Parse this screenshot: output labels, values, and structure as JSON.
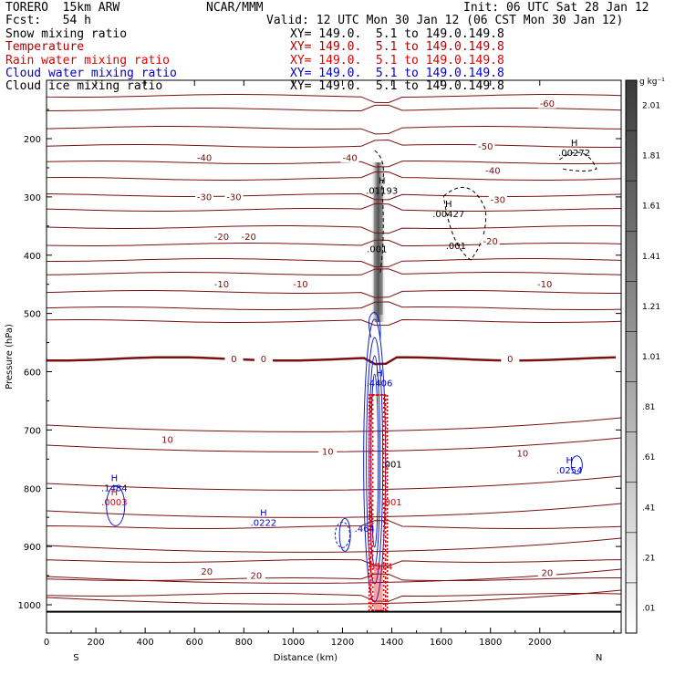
{
  "header": {
    "model": "TORERO  15km ARW",
    "center": "NCAR/MMM",
    "init": "Init: 06 UTC Sat 28 Jan 12",
    "fcst": "Fcst:   54 h",
    "valid": "Valid: 12 UTC Mon 30 Jan 12 (06 CST Mon 30 Jan 12)"
  },
  "fields": [
    {
      "name": "Snow mixing ratio",
      "xy": "XY= 149.0.  5.1 to 149.0.149.8",
      "color": "#000000"
    },
    {
      "name": "Temperature",
      "xy": "XY= 149.0.  5.1 to 149.0.149.8",
      "color": "#b00000"
    },
    {
      "name": "Rain water mixing ratio",
      "xy": "XY= 149.0.  5.1 to 149.0.149.8",
      "color": "#e00000"
    },
    {
      "name": "Cloud water mixing ratio",
      "xy": "XY= 149.0.  5.1 to 149.0.149.8",
      "color": "#0000cc"
    },
    {
      "name": "Cloud ice mixing ratio",
      "xy": "XY= 149.0.  5.1 to 149.0.149.8",
      "color": "#000000"
    }
  ],
  "chart_data": {
    "type": "heatmap",
    "xlabel": "Distance (km)",
    "ylabel": "Pressure (hPa)",
    "xlim": [
      0,
      2330
    ],
    "ylim": [
      1050,
      100
    ],
    "x_ticks": [
      0,
      200,
      400,
      600,
      800,
      1000,
      1200,
      1400,
      1600,
      1800,
      2000
    ],
    "y_ticks": [
      200,
      300,
      400,
      500,
      600,
      700,
      800,
      900,
      1000
    ],
    "x_end_labels": {
      "left": "S",
      "right": "N"
    },
    "colorbar": {
      "unit": "g kg⁻¹",
      "labels": [
        ".01",
        ".21",
        ".41",
        ".61",
        ".81",
        "1.01",
        "1.21",
        "1.41",
        "1.61",
        "1.81",
        "2.01"
      ]
    },
    "temperature_labels": [
      {
        "text": "-60",
        "x": 2030,
        "p": 140
      },
      {
        "text": "-50",
        "x": 1780,
        "p": 213
      },
      {
        "text": "-40",
        "x": 640,
        "p": 233
      },
      {
        "text": "-40",
        "x": 1230,
        "p": 233
      },
      {
        "text": "-40",
        "x": 1810,
        "p": 255
      },
      {
        "text": "-30",
        "x": 640,
        "p": 300
      },
      {
        "text": "-30",
        "x": 760,
        "p": 300
      },
      {
        "text": "-30",
        "x": 1830,
        "p": 305
      },
      {
        "text": "-20",
        "x": 710,
        "p": 368
      },
      {
        "text": "-20",
        "x": 820,
        "p": 368
      },
      {
        "text": "-20",
        "x": 1800,
        "p": 376
      },
      {
        "text": "-10",
        "x": 710,
        "p": 450
      },
      {
        "text": "-10",
        "x": 1030,
        "p": 450
      },
      {
        "text": "-10",
        "x": 2020,
        "p": 450
      },
      {
        "text": "0",
        "x": 760,
        "p": 578
      },
      {
        "text": "0",
        "x": 880,
        "p": 578
      },
      {
        "text": "0",
        "x": 1880,
        "p": 578
      },
      {
        "text": "10",
        "x": 490,
        "p": 717
      },
      {
        "text": "10",
        "x": 1140,
        "p": 737
      },
      {
        "text": "10",
        "x": 1930,
        "p": 740
      },
      {
        "text": "20",
        "x": 650,
        "p": 943
      },
      {
        "text": "20",
        "x": 850,
        "p": 950
      },
      {
        "text": "20",
        "x": 2030,
        "p": 945
      }
    ],
    "extrema": [
      {
        "mark": "H",
        "value": ".01193",
        "x": 1360,
        "p": 290,
        "color": "#000000"
      },
      {
        "mark": "H",
        "value": ".00427",
        "x": 1630,
        "p": 330,
        "color": "#000000"
      },
      {
        "mark": "",
        "value": ".001",
        "x": 1660,
        "p": 385,
        "color": "#000000"
      },
      {
        "mark": "",
        "value": ".001",
        "x": 1340,
        "p": 390,
        "color": "#000000"
      },
      {
        "mark": "H",
        "value": ".00272",
        "x": 2140,
        "p": 225,
        "color": "#000000"
      },
      {
        "mark": "H",
        "value": ".4406",
        "x": 1350,
        "p": 620,
        "color": "#0000cc"
      },
      {
        "mark": "",
        "value": ".001",
        "x": 1400,
        "p": 760,
        "color": "#000000"
      },
      {
        "mark": "",
        "value": ".001",
        "x": 1400,
        "p": 825,
        "color": "#e00000"
      },
      {
        "mark": "H",
        "value": ".1484",
        "x": 275,
        "p": 800,
        "color": "#0000cc"
      },
      {
        "mark": "H",
        "value": ".0003",
        "x": 275,
        "p": 825,
        "color": "#e00000"
      },
      {
        "mark": "H",
        "value": ".0222",
        "x": 880,
        "p": 860,
        "color": "#0000cc"
      },
      {
        "mark": "",
        "value": ".464",
        "x": 1290,
        "p": 870,
        "color": "#0000cc"
      },
      {
        "mark": "H",
        "value": ".0254",
        "x": 2120,
        "p": 770,
        "color": "#0000cc"
      },
      {
        "mark": "",
        "value": ".8514",
        "x": 1350,
        "p": 935,
        "color": "#e00000"
      }
    ]
  }
}
